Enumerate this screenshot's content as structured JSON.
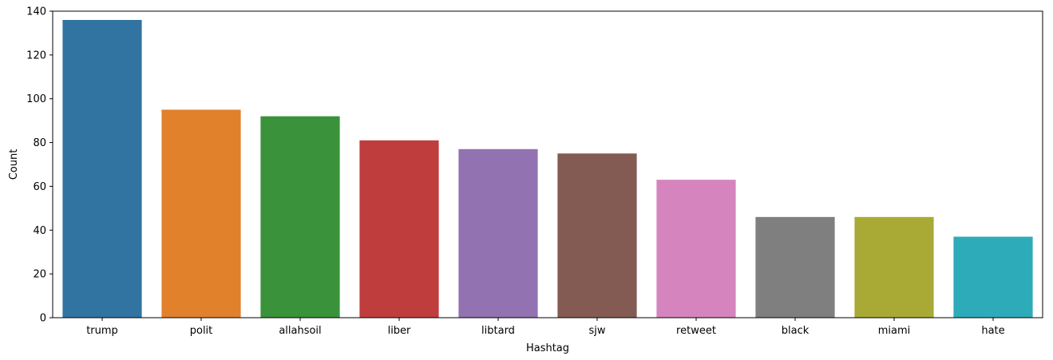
{
  "chart_data": {
    "type": "bar",
    "title": "",
    "xlabel": "Hashtag",
    "ylabel": "Count",
    "categories": [
      "trump",
      "polit",
      "allahsoil",
      "liber",
      "libtard",
      "sjw",
      "retweet",
      "black",
      "miami",
      "hate"
    ],
    "values": [
      136,
      95,
      92,
      81,
      77,
      75,
      63,
      46,
      46,
      37
    ],
    "colors": [
      "#3274a1",
      "#e1812c",
      "#3a923a",
      "#c03d3e",
      "#9372b2",
      "#845b53",
      "#d684bd",
      "#7f7f7f",
      "#a9aa35",
      "#2eabb8"
    ],
    "ylim": [
      0,
      140
    ],
    "yticks": [
      0,
      20,
      40,
      60,
      80,
      100,
      120,
      140
    ],
    "grid": false,
    "legend": "none"
  }
}
